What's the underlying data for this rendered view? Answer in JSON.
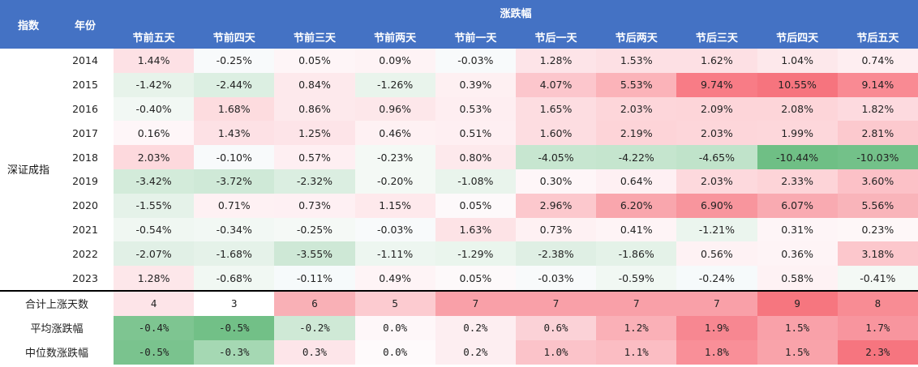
{
  "header": {
    "index_label": "指数",
    "year_label": "年份",
    "group_label": "涨跌幅",
    "periods": [
      "节前五天",
      "节前四天",
      "节前三天",
      "节前两天",
      "节前一天",
      "节后一天",
      "节后两天",
      "节后三天",
      "节后四天",
      "节后五天"
    ]
  },
  "index_name": "深证成指",
  "rows": [
    {
      "year": "2014",
      "values": [
        "1.44%",
        "-0.25%",
        "0.05%",
        "0.09%",
        "-0.03%",
        "1.28%",
        "1.53%",
        "1.62%",
        "1.04%",
        "0.74%"
      ]
    },
    {
      "year": "2015",
      "values": [
        "-1.42%",
        "-2.44%",
        "0.84%",
        "-1.26%",
        "0.39%",
        "4.07%",
        "5.53%",
        "9.74%",
        "10.55%",
        "9.14%"
      ]
    },
    {
      "year": "2016",
      "values": [
        "-0.40%",
        "1.68%",
        "0.86%",
        "0.96%",
        "0.53%",
        "1.65%",
        "2.03%",
        "2.09%",
        "2.08%",
        "1.82%"
      ]
    },
    {
      "year": "2017",
      "values": [
        "0.16%",
        "1.43%",
        "1.25%",
        "0.46%",
        "0.51%",
        "1.60%",
        "2.19%",
        "2.03%",
        "1.99%",
        "2.81%"
      ]
    },
    {
      "year": "2018",
      "values": [
        "2.03%",
        "-0.10%",
        "0.57%",
        "-0.23%",
        "0.80%",
        "-4.05%",
        "-4.22%",
        "-4.65%",
        "-10.44%",
        "-10.03%"
      ]
    },
    {
      "year": "2019",
      "values": [
        "-3.42%",
        "-3.72%",
        "-2.32%",
        "-0.20%",
        "-1.08%",
        "0.30%",
        "0.64%",
        "2.03%",
        "2.33%",
        "3.60%"
      ]
    },
    {
      "year": "2020",
      "values": [
        "-1.55%",
        "0.71%",
        "0.73%",
        "1.15%",
        "0.05%",
        "2.96%",
        "6.20%",
        "6.90%",
        "6.07%",
        "5.56%"
      ]
    },
    {
      "year": "2021",
      "values": [
        "-0.54%",
        "-0.34%",
        "-0.25%",
        "-0.03%",
        "1.63%",
        "0.73%",
        "0.41%",
        "-1.21%",
        "0.31%",
        "0.23%"
      ]
    },
    {
      "year": "2022",
      "values": [
        "-2.07%",
        "-1.68%",
        "-3.55%",
        "-1.11%",
        "-1.29%",
        "-2.38%",
        "-1.86%",
        "0.56%",
        "0.36%",
        "3.18%"
      ]
    },
    {
      "year": "2023",
      "values": [
        "1.28%",
        "-0.68%",
        "-0.11%",
        "0.49%",
        "0.05%",
        "-0.03%",
        "-0.59%",
        "-0.24%",
        "0.58%",
        "-0.41%"
      ]
    }
  ],
  "year_colors": [
    [
      "#fde1e5",
      "#f8fafb",
      "#fef5f7",
      "#fef3f5",
      "#f8fafb",
      "#fde4e8",
      "#fde0e4",
      "#fde0e4",
      "#fde8eb",
      "#feeef1"
    ],
    [
      "#e7f3ea",
      "#dcefe2",
      "#fde9ec",
      "#e9f4ec",
      "#fef0f2",
      "#fcc6cc",
      "#fbb3b9",
      "#f87c86",
      "#f6747e",
      "#f98a93"
    ],
    [
      "#f2f8f4",
      "#fddcdf",
      "#fde9ec",
      "#fde7ea",
      "#feeef1",
      "#fddde1",
      "#fdd6da",
      "#fdd5d9",
      "#fdd5d9",
      "#fddadf"
    ],
    [
      "#fef6f8",
      "#fde1e5",
      "#fde4e8",
      "#fef1f3",
      "#feeff2",
      "#fddde1",
      "#fdd4d8",
      "#fdd6da",
      "#fdd7db",
      "#fcc9ce"
    ],
    [
      "#fdd9dd",
      "#f8fafb",
      "#feeff2",
      "#f4f9f5",
      "#fde9ec",
      "#c7e6d0",
      "#c5e5ce",
      "#c0e3ca",
      "#6fbf85",
      "#73c189"
    ],
    [
      "#d3ebda",
      "#cfe9d7",
      "#dbeee1",
      "#f4f9f5",
      "#e9f4ec",
      "#fef6f8",
      "#fef0f3",
      "#fdd9dd",
      "#fdd4d8",
      "#fcc1c7"
    ],
    [
      "#e5f2e9",
      "#fef1f3",
      "#fef0f3",
      "#fee9ec",
      "#fdf9fa",
      "#fcc8cd",
      "#f9a6ad",
      "#f8959d",
      "#f9aab1",
      "#f9b4ba"
    ],
    [
      "#f0f7f2",
      "#f2f8f4",
      "#f5f9f6",
      "#f8fafb",
      "#fde3e6",
      "#fef1f3",
      "#fef4f6",
      "#ebf5ee",
      "#fef5f7",
      "#fef7f8"
    ],
    [
      "#e1f0e6",
      "#e5f2e9",
      "#cee8d6",
      "#edf6f0",
      "#eaf5ed",
      "#dfefe4",
      "#e4f2e8",
      "#fef2f4",
      "#fef4f6",
      "#fcc7cc"
    ],
    [
      "#fde7ea",
      "#f1f8f3",
      "#f6fafb",
      "#fef4f6",
      "#fdf9fa",
      "#f8fafb",
      "#f1f8f3",
      "#f6fafb",
      "#fef2f4",
      "#f4f9f5"
    ]
  ],
  "stats": [
    {
      "label": "合计上涨天数",
      "values": [
        "4",
        "3",
        "6",
        "5",
        "7",
        "7",
        "7",
        "7",
        "9",
        "8"
      ],
      "colors": [
        "#fde4e8",
        "#ffffff",
        "#f9b0b6",
        "#fccbd0",
        "#f9a0a8",
        "#f9a0a8",
        "#f9a0a8",
        "#f9a0a8",
        "#f6767f",
        "#f88c94"
      ]
    },
    {
      "label": "平均涨跌幅",
      "values": [
        "-0.4%",
        "-0.5%",
        "-0.2%",
        "0.0%",
        "0.2%",
        "0.6%",
        "1.2%",
        "1.9%",
        "1.5%",
        "1.7%"
      ],
      "colors": [
        "#7ec591",
        "#72c087",
        "#cfe9d6",
        "#fef7f9",
        "#fdeef1",
        "#fbd2d7",
        "#fab0b7",
        "#f78791",
        "#f9a1a9",
        "#f8959e"
      ]
    },
    {
      "label": "中位数涨跌幅",
      "values": [
        "-0.5%",
        "-0.3%",
        "0.3%",
        "0.0%",
        "0.2%",
        "1.0%",
        "1.1%",
        "1.8%",
        "1.5%",
        "2.3%"
      ],
      "colors": [
        "#7ac38e",
        "#a5d8b3",
        "#fde5e9",
        "#fefafb",
        "#fdeef1",
        "#fbc3c9",
        "#fbbdc3",
        "#f98f98",
        "#f9a3aa",
        "#f6757f"
      ]
    }
  ]
}
